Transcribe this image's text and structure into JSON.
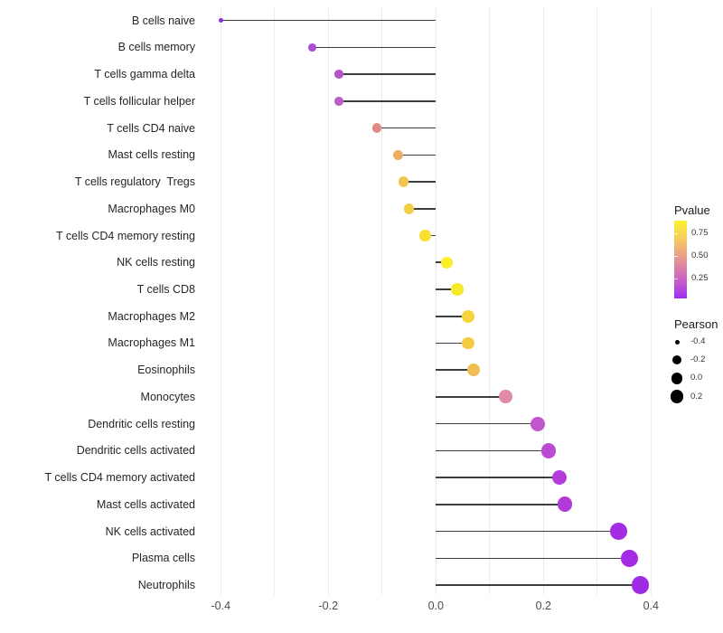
{
  "chart_data": {
    "type": "lollipop",
    "orientation": "horizontal",
    "title": "",
    "xlabel": "",
    "ylabel": "",
    "xlim": [
      -0.45,
      0.45
    ],
    "x_major_ticks": [
      -0.4,
      -0.2,
      0.0,
      0.2,
      0.4
    ],
    "x_tick_labels": [
      "-0.4",
      "-0.2",
      "0.0",
      "0.2",
      "0.4"
    ],
    "x_minor_ticks": [
      -0.3,
      -0.1,
      0.1,
      0.3
    ],
    "grid": "vertical-only",
    "categories": [
      "B cells naive",
      "B cells memory",
      "T cells gamma delta",
      "T cells follicular helper",
      "T cells CD4 naive",
      "Mast cells resting",
      "T cells regulatory  Tregs",
      "Macrophages M0",
      "T cells CD4 memory resting",
      "NK cells resting",
      "T cells CD8",
      "Macrophages M2",
      "Macrophages M1",
      "Eosinophils",
      "Monocytes",
      "Dendritic cells resting",
      "Dendritic cells activated",
      "T cells CD4 memory activated",
      "Mast cells activated",
      "NK cells activated",
      "Plasma cells",
      "Neutrophils"
    ],
    "points": [
      {
        "label": "B cells naive",
        "pearson": -0.4,
        "pvalue": 0.05,
        "color": "#8a2be0"
      },
      {
        "label": "B cells memory",
        "pearson": -0.23,
        "pvalue": 0.18,
        "color": "#ab4ed3"
      },
      {
        "label": "T cells gamma delta",
        "pearson": -0.18,
        "pvalue": 0.22,
        "color": "#b754cb"
      },
      {
        "label": "T cells follicular helper",
        "pearson": -0.18,
        "pvalue": 0.25,
        "color": "#bd60c6"
      },
      {
        "label": "T cells CD4 naive",
        "pearson": -0.11,
        "pvalue": 0.5,
        "color": "#dd8b84"
      },
      {
        "label": "Mast cells resting",
        "pearson": -0.07,
        "pvalue": 0.62,
        "color": "#eeae62"
      },
      {
        "label": "T cells regulatory  Tregs",
        "pearson": -0.06,
        "pvalue": 0.68,
        "color": "#f2c64e"
      },
      {
        "label": "Macrophages M0",
        "pearson": -0.05,
        "pvalue": 0.7,
        "color": "#f4cc45"
      },
      {
        "label": "T cells CD4 memory resting",
        "pearson": -0.02,
        "pvalue": 0.78,
        "color": "#f8e032"
      },
      {
        "label": "NK cells resting",
        "pearson": 0.02,
        "pvalue": 0.85,
        "color": "#fbee26"
      },
      {
        "label": "T cells CD8",
        "pearson": 0.04,
        "pvalue": 0.82,
        "color": "#f9e92b"
      },
      {
        "label": "Macrophages M2",
        "pearson": 0.06,
        "pvalue": 0.72,
        "color": "#f6d53d"
      },
      {
        "label": "Macrophages M1",
        "pearson": 0.06,
        "pvalue": 0.7,
        "color": "#f4ca45"
      },
      {
        "label": "Eosinophils",
        "pearson": 0.07,
        "pvalue": 0.66,
        "color": "#f1bd55"
      },
      {
        "label": "Monocytes",
        "pearson": 0.13,
        "pvalue": 0.48,
        "color": "#e18aa4"
      },
      {
        "label": "Dendritic cells resting",
        "pearson": 0.19,
        "pvalue": 0.26,
        "color": "#c156cd"
      },
      {
        "label": "Dendritic cells activated",
        "pearson": 0.21,
        "pvalue": 0.23,
        "color": "#bb4cd2"
      },
      {
        "label": "T cells CD4 memory activated",
        "pearson": 0.23,
        "pvalue": 0.19,
        "color": "#b23cd9"
      },
      {
        "label": "Mast cells activated",
        "pearson": 0.24,
        "pvalue": 0.18,
        "color": "#b13bda"
      },
      {
        "label": "NK cells activated",
        "pearson": 0.34,
        "pvalue": 0.1,
        "color": "#a52ce2"
      },
      {
        "label": "Plasma cells",
        "pearson": 0.36,
        "pvalue": 0.09,
        "color": "#a42ae3"
      },
      {
        "label": "Neutrophils",
        "pearson": 0.38,
        "pvalue": 0.08,
        "color": "#a02be5"
      }
    ],
    "legend": {
      "pvalue": {
        "title": "Pvalue",
        "gradient_top_to_bottom": [
          "#fcf32a",
          "#f5c964",
          "#e59593",
          "#cb63c2",
          "#9c2ff2"
        ],
        "domain": [
          0.03,
          0.89
        ],
        "ticks": [
          {
            "value": 0.75,
            "label": "0.75"
          },
          {
            "value": 0.5,
            "label": "0.50"
          },
          {
            "value": 0.25,
            "label": "0.25"
          }
        ]
      },
      "pearson": {
        "title": "Pearson",
        "items": [
          {
            "label": "-0.4",
            "diameter": 5
          },
          {
            "label": "-0.2",
            "diameter": 10.5
          },
          {
            "label": "0.0",
            "diameter": 12.5
          },
          {
            "label": "0.2",
            "diameter": 14.5
          }
        ]
      }
    },
    "stem_color": "#3d3d3d",
    "gridline_color": "#ebebeb"
  }
}
